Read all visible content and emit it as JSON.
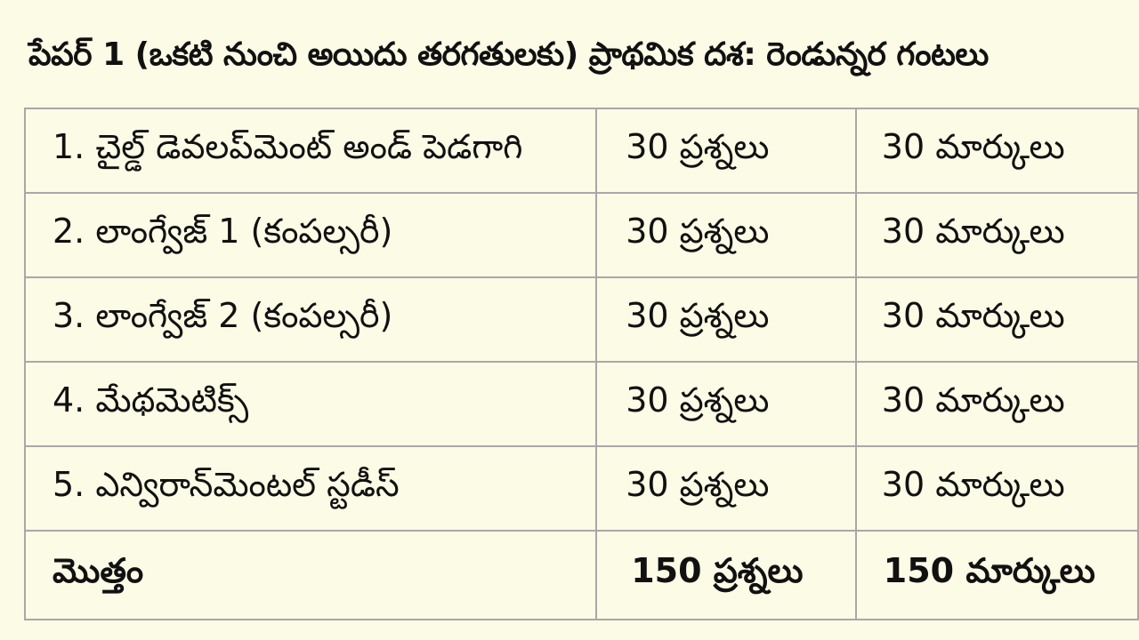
{
  "title": "పేపర్ 1 (ఒకటి నుంచి అయిదు తరగతులకు) ప్రాథమిక దశ: రెండున్నర గంటలు",
  "rows": [
    {
      "subject": "1. చైల్డ్ డెవలప్‌మెంట్ అండ్ పెడగాగి",
      "questions": "30 ప్రశ్నలు",
      "marks": "30 మార్కులు"
    },
    {
      "subject": "2. లాంగ్వేజ్ 1 (కంపల్సరీ)",
      "questions": "30 ప్రశ్నలు",
      "marks": "30 మార్కులు"
    },
    {
      "subject": "3. లాంగ్వేజ్ 2 (కంపల్సరీ)",
      "questions": "30 ప్రశ్నలు",
      "marks": "30 మార్కులు"
    },
    {
      "subject": "4. మేథమెటిక్స్",
      "questions": "30 ప్రశ్నలు",
      "marks": "30 మార్కులు"
    },
    {
      "subject": "5. ఎన్విరాన్‌మెంటల్ స్టడీస్",
      "questions": "30 ప్రశ్నలు",
      "marks": "30 మార్కులు"
    }
  ],
  "total": {
    "label": "మొత్తం",
    "questions": "150 ప్రశ్నలు",
    "marks": "150 మార్కులు"
  }
}
